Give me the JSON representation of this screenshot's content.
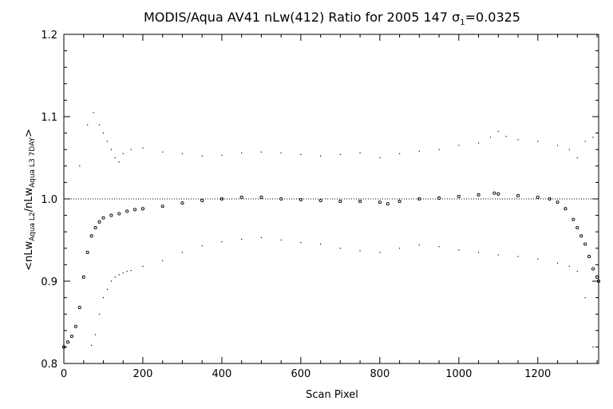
{
  "chart_data": {
    "type": "scatter",
    "title_main": "MODIS/Aqua AV41 nLw(412) Ratio for 2005 147 ",
    "title_sigma": "σ",
    "title_sigma_sub": "1",
    "title_value": "=0.0325",
    "xlabel": "Scan Pixel",
    "ylabel_open": "<nLw",
    "ylabel_sub1": "Aqua L2",
    "ylabel_mid": "/nLw",
    "ylabel_sub2": "Aqua L3 7DAY",
    "ylabel_close": ">",
    "xlim": [
      0,
      1354
    ],
    "ylim": [
      0.8,
      1.2
    ],
    "xticks": [
      0,
      200,
      400,
      600,
      800,
      1000,
      1200
    ],
    "xtick_labels": [
      "0",
      "200",
      "400",
      "600",
      "800",
      "1000",
      "1200"
    ],
    "yticks": [
      0.8,
      0.9,
      1.0,
      1.1,
      1.2
    ],
    "ytick_labels": [
      "0.8",
      "0.9",
      "1.0",
      "1.1",
      "1.2"
    ],
    "reference_line": 1.0,
    "grid": false,
    "series": [
      {
        "role": "mean",
        "x": [
          0,
          10,
          20,
          30,
          40,
          50,
          60,
          70,
          80,
          90,
          100,
          120,
          140,
          160,
          180,
          200,
          250,
          300,
          350,
          400,
          450,
          500,
          550,
          600,
          650,
          700,
          750,
          800,
          820,
          850,
          900,
          950,
          1000,
          1050,
          1090,
          1100,
          1150,
          1200,
          1230,
          1250,
          1270,
          1290,
          1300,
          1310,
          1320,
          1330,
          1340,
          1350,
          1354
        ],
        "y": [
          0.82,
          0.826,
          0.833,
          0.845,
          0.868,
          0.905,
          0.935,
          0.955,
          0.965,
          0.972,
          0.977,
          0.98,
          0.982,
          0.985,
          0.987,
          0.988,
          0.991,
          0.995,
          0.998,
          1.0,
          1.002,
          1.002,
          1.0,
          0.999,
          0.998,
          0.997,
          0.997,
          0.996,
          0.994,
          0.997,
          1.0,
          1.001,
          1.003,
          1.005,
          1.007,
          1.006,
          1.004,
          1.002,
          1.0,
          0.996,
          0.988,
          0.975,
          0.965,
          0.955,
          0.945,
          0.93,
          0.915,
          0.905,
          0.9
        ]
      },
      {
        "role": "upper",
        "x": [
          40,
          60,
          75,
          90,
          100,
          110,
          120,
          130,
          140,
          150,
          170,
          200,
          250,
          300,
          350,
          400,
          450,
          500,
          550,
          600,
          650,
          700,
          750,
          800,
          850,
          900,
          950,
          1000,
          1050,
          1080,
          1100,
          1120,
          1150,
          1200,
          1250,
          1280,
          1300,
          1320,
          1340
        ],
        "y": [
          1.04,
          1.09,
          1.105,
          1.09,
          1.08,
          1.07,
          1.06,
          1.05,
          1.045,
          1.055,
          1.06,
          1.062,
          1.057,
          1.055,
          1.052,
          1.053,
          1.056,
          1.057,
          1.056,
          1.054,
          1.052,
          1.054,
          1.056,
          1.05,
          1.055,
          1.058,
          1.06,
          1.065,
          1.068,
          1.075,
          1.082,
          1.076,
          1.072,
          1.07,
          1.065,
          1.06,
          1.05,
          1.07,
          1.075
        ]
      },
      {
        "role": "lower",
        "x": [
          70,
          80,
          90,
          100,
          110,
          120,
          130,
          140,
          150,
          160,
          170,
          200,
          250,
          300,
          350,
          400,
          450,
          500,
          550,
          600,
          650,
          700,
          750,
          800,
          850,
          900,
          950,
          1000,
          1050,
          1100,
          1150,
          1200,
          1250,
          1280,
          1300,
          1320,
          1340
        ],
        "y": [
          0.822,
          0.835,
          0.86,
          0.88,
          0.89,
          0.9,
          0.905,
          0.908,
          0.91,
          0.912,
          0.913,
          0.918,
          0.925,
          0.935,
          0.943,
          0.948,
          0.951,
          0.953,
          0.95,
          0.947,
          0.945,
          0.94,
          0.937,
          0.935,
          0.94,
          0.944,
          0.942,
          0.938,
          0.935,
          0.932,
          0.93,
          0.927,
          0.922,
          0.918,
          0.912,
          0.88,
          0.82
        ]
      }
    ]
  }
}
